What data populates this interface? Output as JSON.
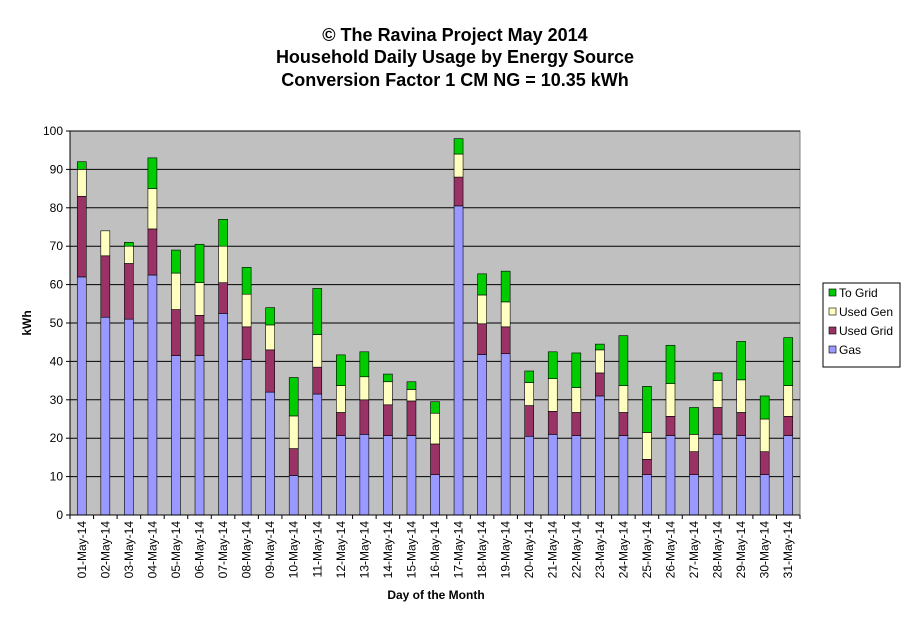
{
  "chart_data": {
    "type": "bar",
    "stacked": true,
    "title": [
      "© The Ravina Project May 2014",
      "Household Daily Usage by Energy Source",
      "Conversion Factor 1 CM NG = 10.35 kWh"
    ],
    "xlabel": "Day of the Month",
    "ylabel": "kWh",
    "ylim": [
      0,
      100
    ],
    "yticks": [
      0,
      10,
      20,
      30,
      40,
      50,
      60,
      70,
      80,
      90,
      100
    ],
    "grid": true,
    "legend_position": "right",
    "categories": [
      "01-May-14",
      "02-May-14",
      "03-May-14",
      "04-May-14",
      "05-May-14",
      "06-May-14",
      "07-May-14",
      "08-May-14",
      "09-May-14",
      "10-May-14",
      "11-May-14",
      "12-May-14",
      "13-May-14",
      "14-May-14",
      "15-May-14",
      "16-May-14",
      "17-May-14",
      "18-May-14",
      "19-May-14",
      "20-May-14",
      "21-May-14",
      "22-May-14",
      "23-May-14",
      "24-May-14",
      "25-May-14",
      "26-May-14",
      "27-May-14",
      "28-May-14",
      "29-May-14",
      "30-May-14",
      "31-May-14"
    ],
    "series": [
      {
        "name": "Gas",
        "color": "#9999ff",
        "values": [
          62,
          51.5,
          51,
          62.5,
          41.5,
          41.5,
          52.5,
          40.5,
          32,
          10.3,
          31.5,
          20.7,
          21,
          20.7,
          20.7,
          10.5,
          80.5,
          41.8,
          42,
          20.5,
          21,
          20.7,
          31,
          20.7,
          10.5,
          20.7,
          10.5,
          21,
          20.7,
          10.5,
          20.7
        ]
      },
      {
        "name": "Used Grid",
        "color": "#993366",
        "values": [
          21,
          16,
          14.5,
          12,
          12,
          10.5,
          8,
          8.5,
          11,
          7,
          7,
          6,
          9,
          8,
          9,
          8,
          7.5,
          8,
          7,
          8,
          6,
          6,
          6,
          6,
          4,
          5,
          6,
          7,
          6,
          6,
          5
        ]
      },
      {
        "name": "Used Gen",
        "color": "#ffffc0",
        "values": [
          7,
          6.5,
          4.5,
          10.5,
          9.5,
          8.5,
          9.5,
          8.5,
          6.5,
          8.5,
          8.5,
          7,
          6,
          6,
          3,
          8,
          6,
          7.5,
          6.5,
          6,
          8.5,
          6.5,
          6,
          7,
          7,
          8.5,
          4.5,
          7,
          8.5,
          8.5,
          8
        ]
      },
      {
        "name": "To Grid",
        "color": "#00cc00",
        "values": [
          2,
          0,
          1,
          8,
          6,
          10,
          7,
          7,
          4.5,
          10,
          12,
          8,
          6.5,
          2,
          2,
          3,
          4,
          5.5,
          8,
          3,
          7,
          9,
          1.5,
          13,
          12,
          10,
          7,
          2,
          10,
          6,
          12.5
        ]
      }
    ]
  }
}
